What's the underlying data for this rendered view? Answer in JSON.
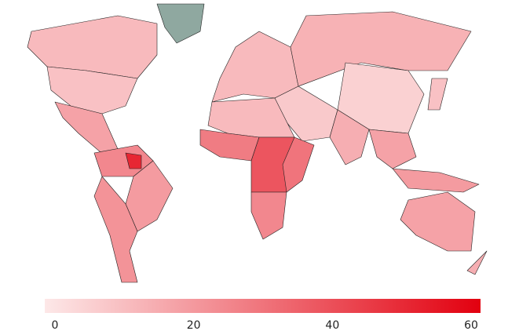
{
  "map": {
    "values": [
      12,
      10,
      null,
      18,
      25,
      50,
      20,
      22,
      12,
      14,
      6,
      8,
      15,
      18,
      20,
      10,
      12,
      28,
      38,
      30,
      25,
      18,
      15
    ],
    "missing_color": "#8fa8a0",
    "colorbar": {
      "range": [
        0,
        60
      ],
      "ticks": [
        0,
        20,
        40,
        60
      ],
      "colors": [
        "#fde8e8",
        "#e2000f"
      ]
    }
  }
}
